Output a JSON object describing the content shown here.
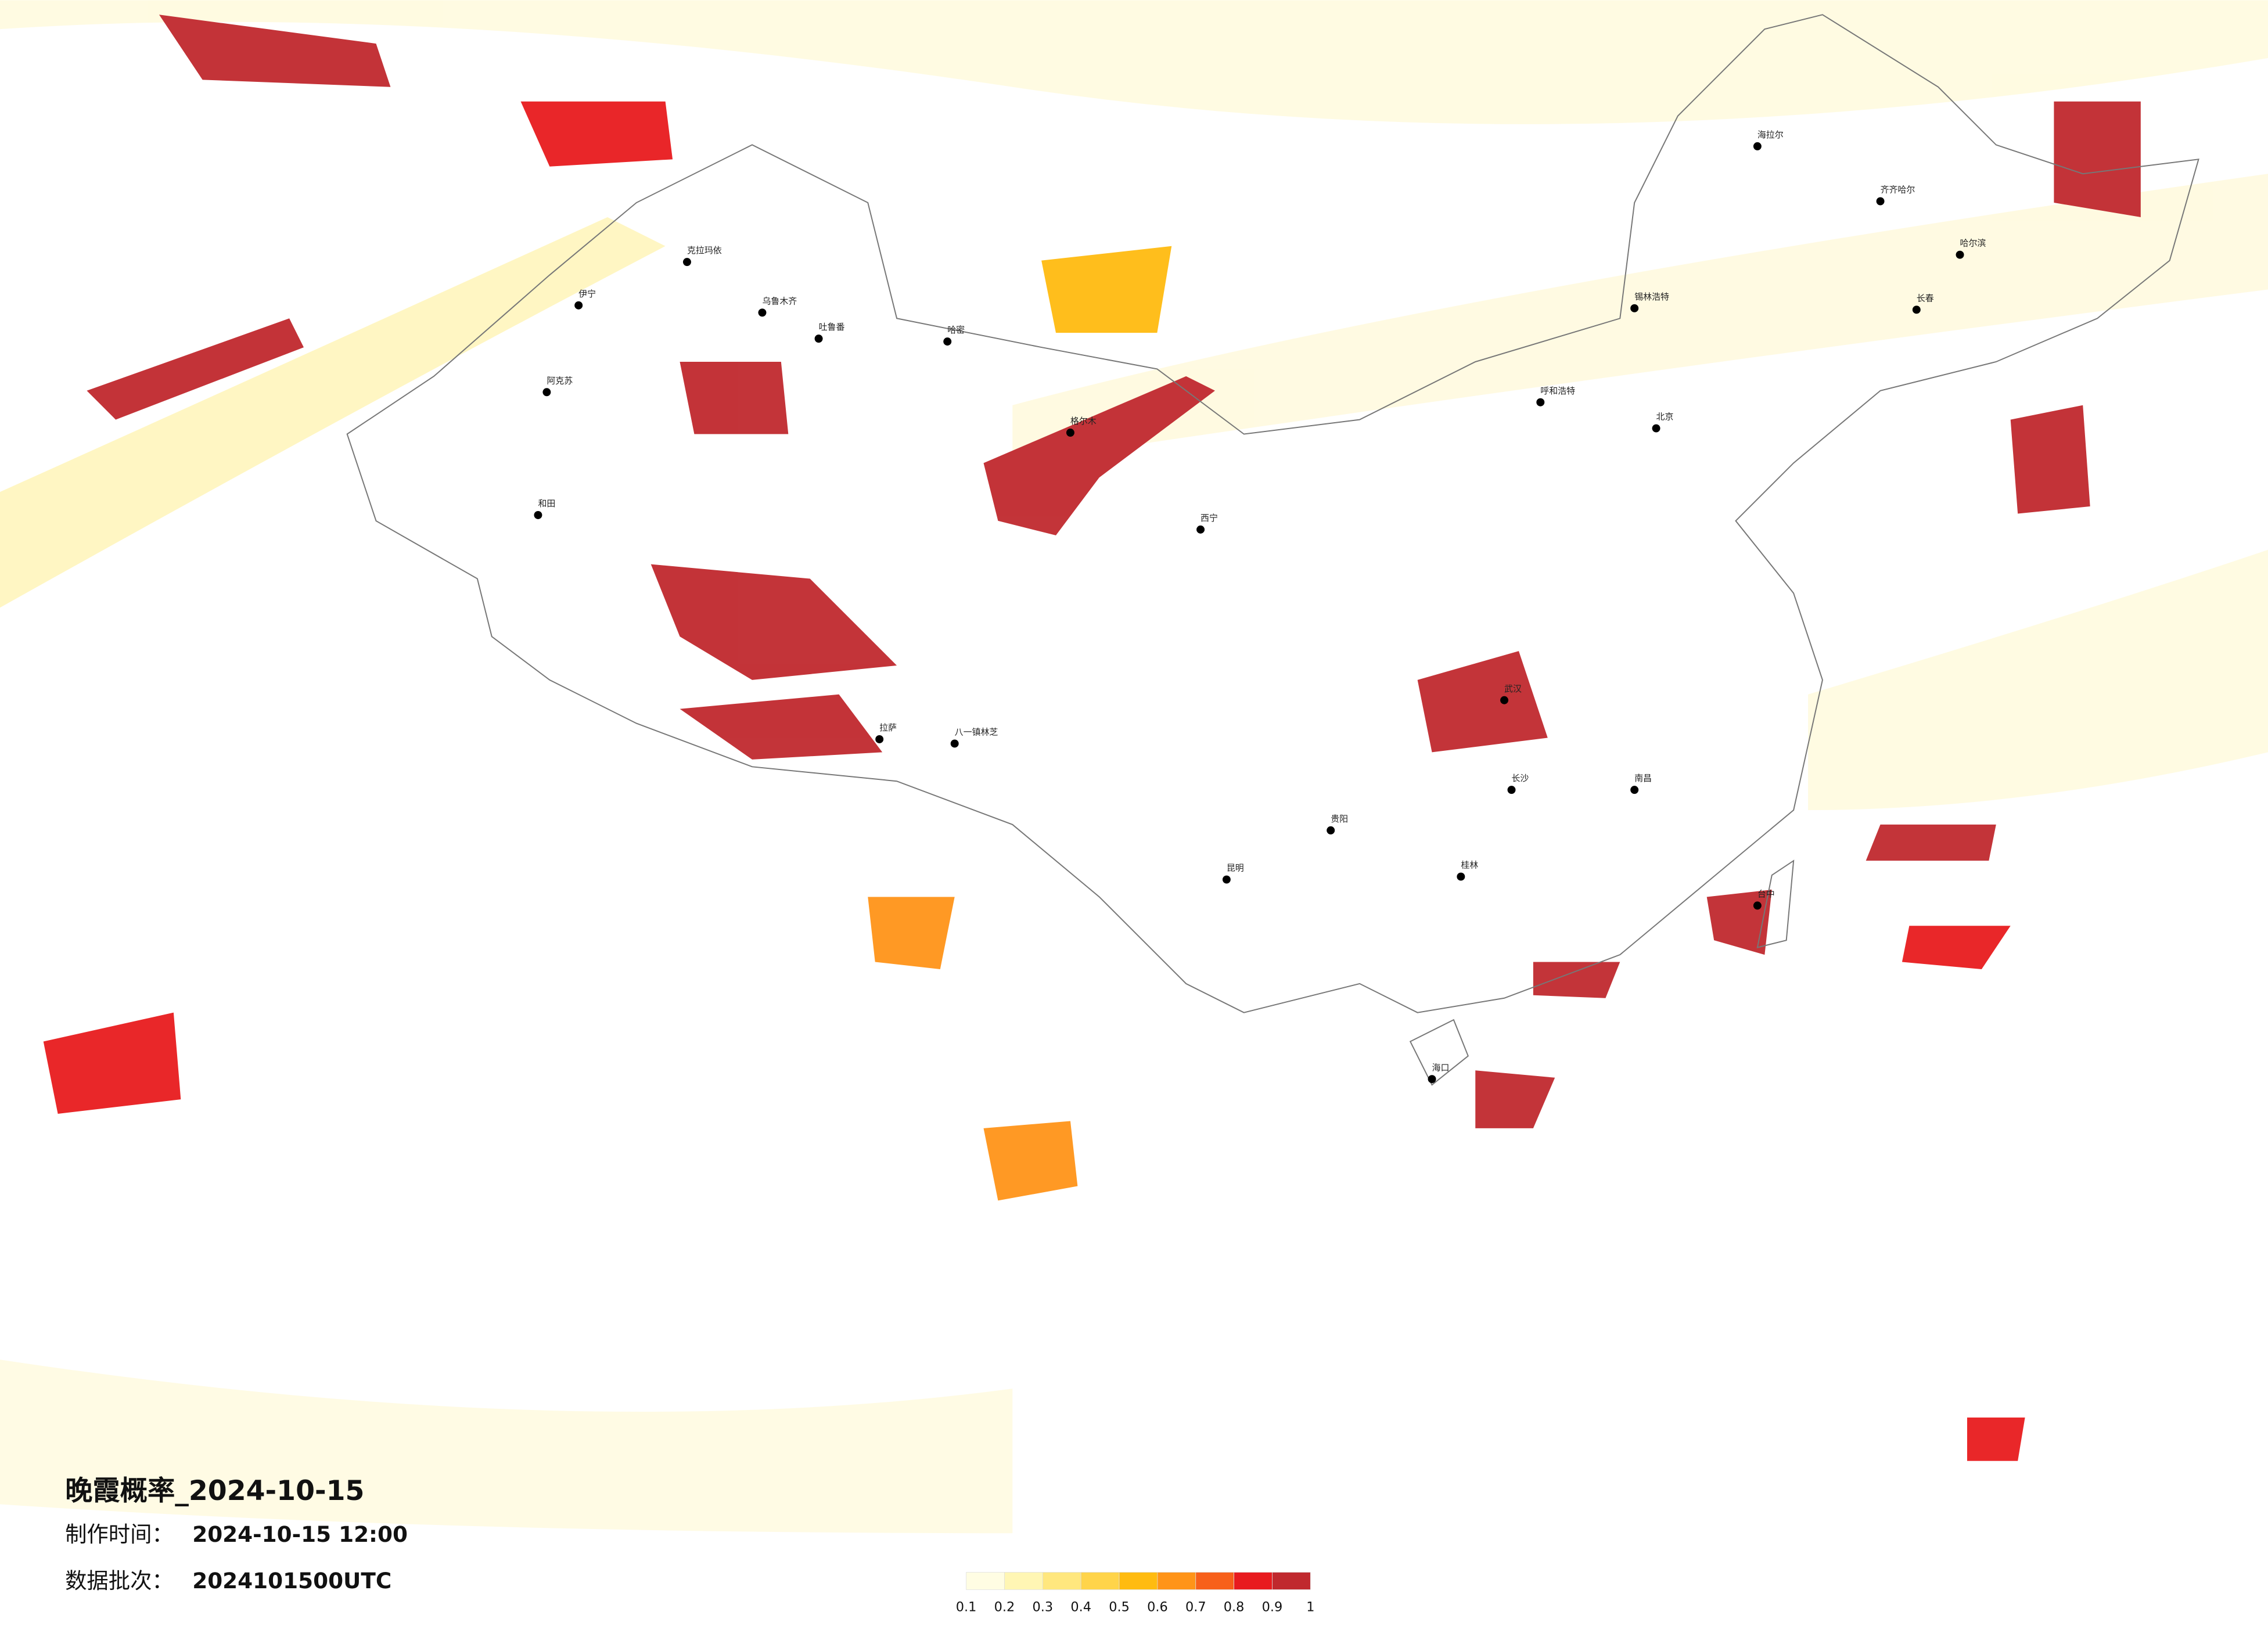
{
  "header": {
    "title": "晚霞概率_2024-10-15",
    "made_time_label": "制作时间：",
    "made_time": "2024-10-15 12:00",
    "batch_label": "数据批次：",
    "batch": "2024101500UTC"
  },
  "colorbar": {
    "ticks": [
      0.1,
      0.2,
      0.3,
      0.4,
      0.5,
      0.6,
      0.7,
      0.8,
      0.9,
      1
    ],
    "colors": [
      "#fffde3",
      "#fff6b4",
      "#ffe77e",
      "#ffd44a",
      "#ffbb10",
      "#ff9418",
      "#f7601a",
      "#e81b1e",
      "#c0292e"
    ]
  },
  "cities": [
    {
      "name": "海拉尔"
    },
    {
      "name": "齐齐哈尔"
    },
    {
      "name": "哈尔滨"
    },
    {
      "name": "长春"
    },
    {
      "name": "锡林浩特"
    },
    {
      "name": "呼和浩特"
    },
    {
      "name": "北京"
    },
    {
      "name": "克拉玛依"
    },
    {
      "name": "伊宁"
    },
    {
      "name": "乌鲁木齐"
    },
    {
      "name": "吐鲁番"
    },
    {
      "name": "哈密"
    },
    {
      "name": "阿克苏"
    },
    {
      "name": "和田"
    },
    {
      "name": "格尔木"
    },
    {
      "name": "西宁"
    },
    {
      "name": "拉萨"
    },
    {
      "name": "八一镇林芝"
    },
    {
      "name": "昆明"
    },
    {
      "name": "贵阳"
    },
    {
      "name": "武汉"
    },
    {
      "name": "长沙"
    },
    {
      "name": "南昌"
    },
    {
      "name": "桂林"
    },
    {
      "name": "海口"
    },
    {
      "name": "台中"
    }
  ]
}
